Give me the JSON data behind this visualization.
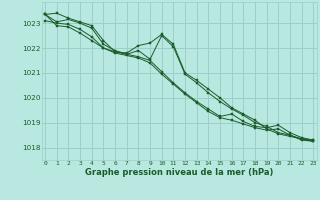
{
  "title": "Graphe pression niveau de la mer (hPa)",
  "bg_color": "#b8e8e0",
  "grid_color": "#9dcfca",
  "line_color": "#1a5c2a",
  "xlim": [
    -0.3,
    23.3
  ],
  "ylim": [
    1017.5,
    1023.85
  ],
  "yticks": [
    1018,
    1019,
    1020,
    1021,
    1022,
    1023
  ],
  "xticks": [
    0,
    1,
    2,
    3,
    4,
    5,
    6,
    7,
    8,
    9,
    10,
    11,
    12,
    13,
    14,
    15,
    16,
    17,
    18,
    19,
    20,
    21,
    22,
    23
  ],
  "series": [
    [
      1023.35,
      1023.4,
      1023.2,
      1023.05,
      1022.9,
      1022.3,
      1021.85,
      1021.8,
      1022.1,
      1022.2,
      1022.55,
      1022.15,
      1021.0,
      1020.7,
      1020.35,
      1020.0,
      1019.6,
      1019.35,
      1019.1,
      1018.75,
      1018.55,
      1018.45,
      1018.35,
      1018.3
    ],
    [
      1023.35,
      1022.9,
      1022.85,
      1022.6,
      1022.3,
      1022.0,
      1021.85,
      1021.75,
      1021.9,
      1021.55,
      1022.5,
      1022.05,
      1020.95,
      1020.6,
      1020.2,
      1019.85,
      1019.55,
      1019.3,
      1019.0,
      1018.85,
      1018.6,
      1018.5,
      1018.3,
      1018.25
    ],
    [
      1023.35,
      1023.05,
      1023.15,
      1023.0,
      1022.8,
      1022.15,
      1021.9,
      1021.75,
      1021.65,
      1021.5,
      1021.05,
      1020.6,
      1020.2,
      1019.85,
      1019.55,
      1019.25,
      1019.35,
      1019.05,
      1018.85,
      1018.8,
      1018.9,
      1018.6,
      1018.4,
      1018.3
    ],
    [
      1023.1,
      1023.0,
      1022.95,
      1022.75,
      1022.45,
      1022.0,
      1021.8,
      1021.7,
      1021.6,
      1021.4,
      1020.95,
      1020.55,
      1020.15,
      1019.8,
      1019.45,
      1019.2,
      1019.1,
      1018.95,
      1018.8,
      1018.7,
      1018.75,
      1018.5,
      1018.35,
      1018.25
    ]
  ]
}
